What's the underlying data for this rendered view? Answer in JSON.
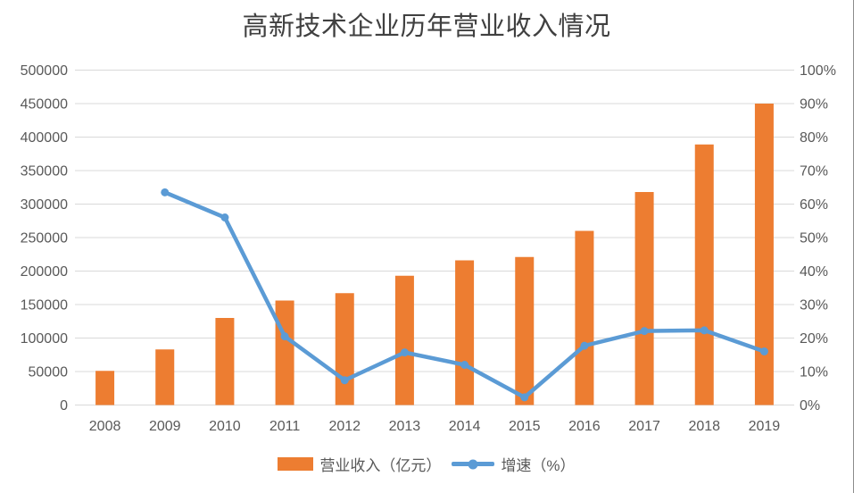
{
  "chart_data": {
    "type": "combo",
    "title": "高新技术企业历年营业收入情况",
    "categories": [
      "2008",
      "2009",
      "2010",
      "2011",
      "2012",
      "2013",
      "2014",
      "2015",
      "2016",
      "2017",
      "2018",
      "2019"
    ],
    "series": [
      {
        "name": "营业收入（亿元）",
        "type": "bar",
        "axis": "left",
        "color": "#ED7D31",
        "values": [
          51000,
          83000,
          130000,
          156000,
          167000,
          193000,
          216000,
          221000,
          260000,
          318000,
          389000,
          450000
        ]
      },
      {
        "name": "增速（%）",
        "type": "line",
        "axis": "right",
        "color": "#5B9BD5",
        "values": [
          null,
          63.5,
          56,
          20.5,
          7.4,
          15.7,
          12,
          2.3,
          17.7,
          22.1,
          22.3,
          16
        ]
      }
    ],
    "left_axis": {
      "min": 0,
      "max": 500000,
      "step": 50000,
      "ticks": [
        "0",
        "50000",
        "100000",
        "150000",
        "200000",
        "250000",
        "300000",
        "350000",
        "400000",
        "450000",
        "500000"
      ]
    },
    "right_axis": {
      "min": 0,
      "max": 100,
      "step": 10,
      "ticks": [
        "0%",
        "10%",
        "20%",
        "30%",
        "40%",
        "50%",
        "60%",
        "70%",
        "80%",
        "90%",
        "100%"
      ]
    },
    "grid": true,
    "legend_position": "bottom",
    "gridline_color": "#D9D9D9",
    "text_color": "#595959",
    "title_color": "#404040"
  }
}
